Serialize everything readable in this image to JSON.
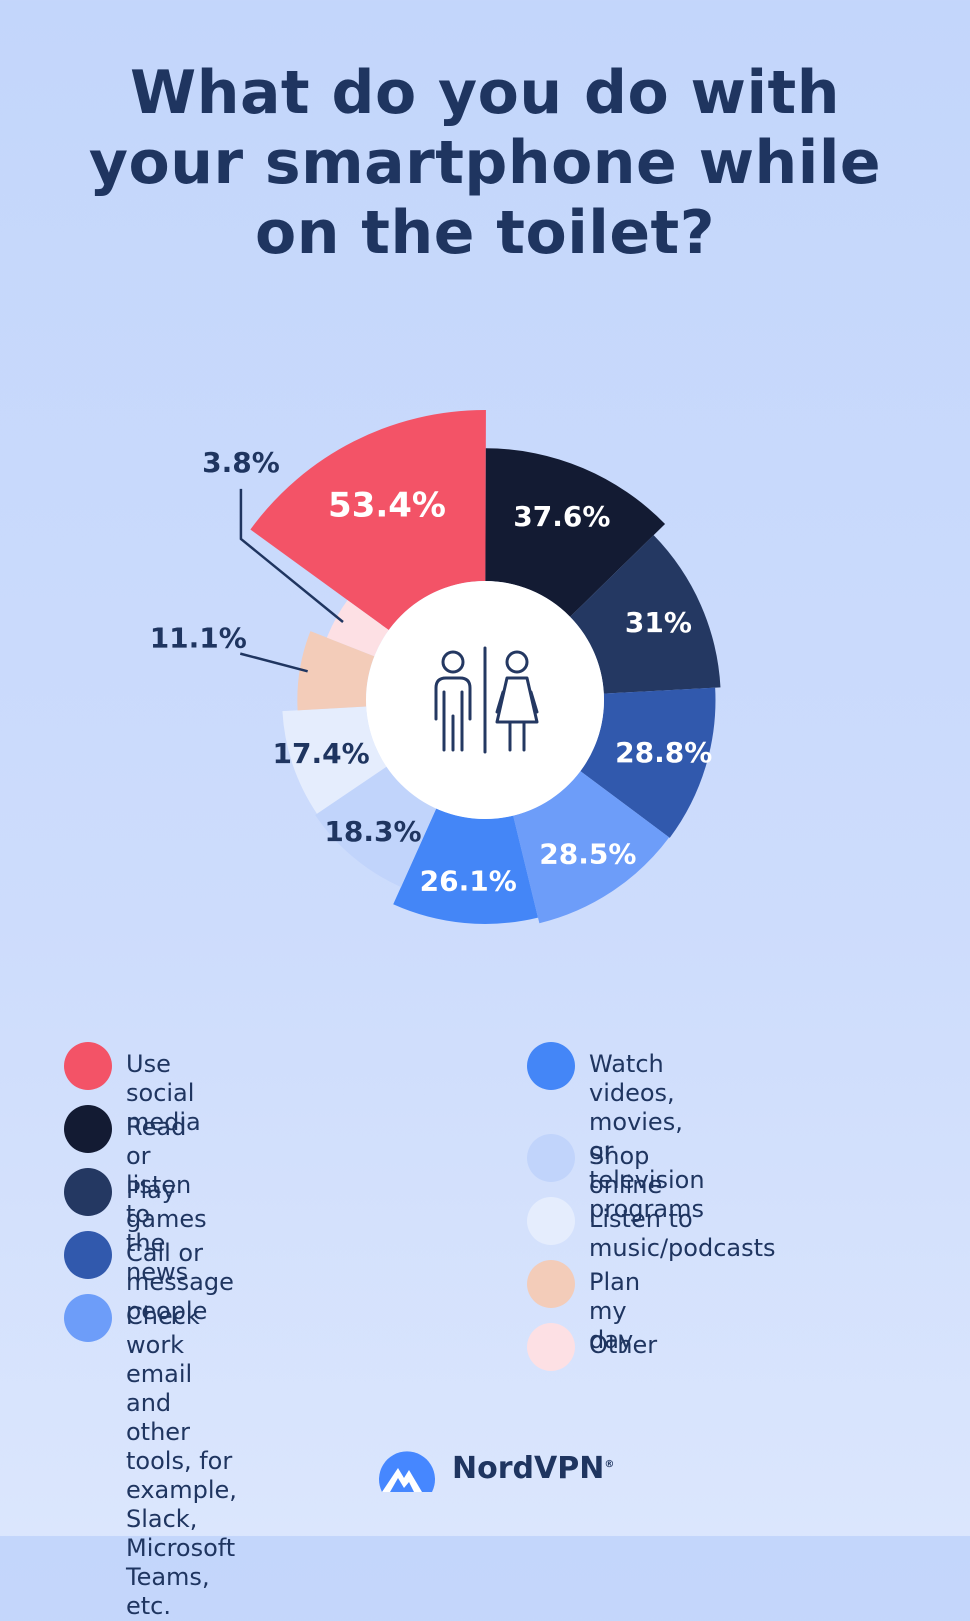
{
  "title_lines": [
    "What do you do with",
    "your smartphone while",
    "on the toilet?"
  ],
  "chart_data": {
    "type": "pie",
    "style": "radial-donut",
    "title": "What do you do with your smartphone while on the toilet?",
    "series": [
      {
        "name": "Use social media",
        "value": 53.4,
        "label": "53.4%",
        "color": "#f35367"
      },
      {
        "name": "Read or listen to the news",
        "value": 37.6,
        "label": "37.6%",
        "color": "#131b33"
      },
      {
        "name": "Play games",
        "value": 31,
        "label": "31%",
        "color": "#243862"
      },
      {
        "name": "Call or message people",
        "value": 28.8,
        "label": "28.8%",
        "color": "#3159ad"
      },
      {
        "name": "Check work email and other tools, for example, Slack, Microsoft Teams, etc.",
        "value": 28.5,
        "label": "28.5%",
        "color": "#6d9df9"
      },
      {
        "name": "Watch videos, movies, or television programs",
        "value": 26.1,
        "label": "26.1%",
        "color": "#4486f7"
      },
      {
        "name": "Shop online",
        "value": 18.3,
        "label": "18.3%",
        "color": "#c1d4fb"
      },
      {
        "name": "Listen to music/podcasts",
        "value": 17.4,
        "label": "17.4%",
        "color": "#e5edfd"
      },
      {
        "name": "Plan my day",
        "value": 11.1,
        "label": "11.1%",
        "color": "#f3ccb9"
      },
      {
        "name": "Other",
        "value": 3.8,
        "label": "3.8%",
        "color": "#fde0e4"
      }
    ]
  },
  "legend_left": [
    {
      "label": "Use social media",
      "color": "#f35367"
    },
    {
      "label": "Read or listen to the news",
      "color": "#131b33"
    },
    {
      "label": "Play games",
      "color": "#243862"
    },
    {
      "label": "Call or message people",
      "color": "#3159ad"
    },
    {
      "label": "Check work email and other\ntools, for example, Slack,\nMicrosoft Teams, etc.",
      "color": "#6d9df9"
    }
  ],
  "legend_right": [
    {
      "label": "Watch videos, movies,\nor television programs",
      "color": "#4486f7"
    },
    {
      "label": "Shop online",
      "color": "#c1d4fb"
    },
    {
      "label": "Listen to music/podcasts",
      "color": "#e5edfd"
    },
    {
      "label": "Plan my day",
      "color": "#f3ccb9"
    },
    {
      "label": "Other",
      "color": "#fde0e4"
    }
  ],
  "center_icon": "restroom-icon",
  "brand": {
    "name": "NordVPN",
    "mark": "®",
    "icon": "nordvpn-logo-icon"
  }
}
